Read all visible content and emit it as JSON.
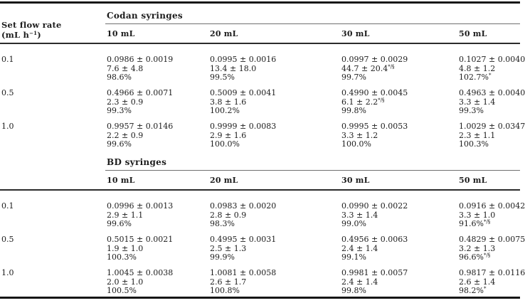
{
  "page": {
    "background": "#ffffff",
    "ink": "#1c1c1c"
  },
  "stub": {
    "line1": "Set flow rate",
    "unit_open": "(mL h",
    "unit_sup": "−1",
    "unit_close": ")"
  },
  "sections": [
    {
      "title": "Codan syringes",
      "columns": [
        "10 mL",
        "20 mL",
        "30 mL",
        "50 mL"
      ],
      "rows": [
        {
          "flow_rate": "0.1",
          "cells": [
            {
              "lines": [
                {
                  "t": "0.0986 ± 0.0019"
                },
                {
                  "t": "7.6 ± 4.8"
                },
                {
                  "t": "98.6%"
                }
              ]
            },
            {
              "lines": [
                {
                  "t": "0.0995 ± 0.0016"
                },
                {
                  "t": "13.4 ± 18.0"
                },
                {
                  "t": "99.5%"
                }
              ]
            },
            {
              "lines": [
                {
                  "t": "0.0997 ± 0.0029"
                },
                {
                  "t": "44.7 ± 20.4",
                  "sup": "*/§"
                },
                {
                  "t": "99.7%"
                }
              ]
            },
            {
              "lines": [
                {
                  "t": "0.1027 ± 0.0040"
                },
                {
                  "t": "4.8 ± 1.2"
                },
                {
                  "t": "102.7%",
                  "sup": "*"
                }
              ]
            }
          ]
        },
        {
          "flow_rate": "0.5",
          "cells": [
            {
              "lines": [
                {
                  "t": "0.4966 ± 0.0071"
                },
                {
                  "t": "2.3 ± 0.9"
                },
                {
                  "t": "99.3%"
                }
              ]
            },
            {
              "lines": [
                {
                  "t": "0.5009 ± 0.0041"
                },
                {
                  "t": "3.8 ± 1.6"
                },
                {
                  "t": "100.2%"
                }
              ]
            },
            {
              "lines": [
                {
                  "t": "0.4990 ± 0.0045"
                },
                {
                  "t": "6.1 ± 2.2",
                  "sup": "*/§"
                },
                {
                  "t": "99.8%"
                }
              ]
            },
            {
              "lines": [
                {
                  "t": "0.4963 ± 0.0040"
                },
                {
                  "t": "3.3 ± 1.4"
                },
                {
                  "t": "99.3%"
                }
              ]
            }
          ]
        },
        {
          "flow_rate": "1.0",
          "cells": [
            {
              "lines": [
                {
                  "t": "0.9957 ± 0.0146"
                },
                {
                  "t": "2.2 ± 0.9"
                },
                {
                  "t": "99.6%"
                }
              ]
            },
            {
              "lines": [
                {
                  "t": "0.9999 ± 0.0083"
                },
                {
                  "t": "2.9 ± 1.6"
                },
                {
                  "t": "100.0%"
                }
              ]
            },
            {
              "lines": [
                {
                  "t": "0.9995 ± 0.0053"
                },
                {
                  "t": "3.3 ± 1.2"
                },
                {
                  "t": "100.0%"
                }
              ]
            },
            {
              "lines": [
                {
                  "t": "1.0029 ± 0.0347"
                },
                {
                  "t": "2.3 ± 1.1"
                },
                {
                  "t": "100.3%"
                }
              ]
            }
          ]
        }
      ]
    },
    {
      "title": "BD syringes",
      "columns": [
        "10 mL",
        "20 mL",
        "30 mL",
        "50 mL"
      ],
      "rows": [
        {
          "flow_rate": "0.1",
          "cells": [
            {
              "lines": [
                {
                  "t": "0.0996 ± 0.0013"
                },
                {
                  "t": "2.9 ± 1.1"
                },
                {
                  "t": "99.6%"
                }
              ]
            },
            {
              "lines": [
                {
                  "t": "0.0983 ± 0.0020"
                },
                {
                  "t": "2.8 ± 0.9"
                },
                {
                  "t": "98.3%"
                }
              ]
            },
            {
              "lines": [
                {
                  "t": "0.0990 ± 0.0022"
                },
                {
                  "t": "3.3 ± 1.4"
                },
                {
                  "t": "99.0%"
                }
              ]
            },
            {
              "lines": [
                {
                  "t": "0.0916 ± 0.0042"
                },
                {
                  "t": "3.3 ± 1.0"
                },
                {
                  "t": "91.6%",
                  "sup": "*/§"
                }
              ]
            }
          ]
        },
        {
          "flow_rate": "0.5",
          "cells": [
            {
              "lines": [
                {
                  "t": "0.5015 ± 0.0021"
                },
                {
                  "t": "1.9 ± 1.0"
                },
                {
                  "t": "100.3%"
                }
              ]
            },
            {
              "lines": [
                {
                  "t": "0.4995 ± 0.0031"
                },
                {
                  "t": "2.5 ± 1.3"
                },
                {
                  "t": "99.9%"
                }
              ]
            },
            {
              "lines": [
                {
                  "t": "0.4956 ± 0.0063"
                },
                {
                  "t": "2.4 ± 1.4"
                },
                {
                  "t": "99.1%"
                }
              ]
            },
            {
              "lines": [
                {
                  "t": "0.4829 ± 0.0075"
                },
                {
                  "t": "3.2 ± 1.3"
                },
                {
                  "t": "96.6%",
                  "sup": "*/§"
                }
              ]
            }
          ]
        },
        {
          "flow_rate": "1.0",
          "cells": [
            {
              "lines": [
                {
                  "t": "1.0045 ± 0.0038"
                },
                {
                  "t": "2.0 ± 1.0"
                },
                {
                  "t": "100.5%"
                }
              ]
            },
            {
              "lines": [
                {
                  "t": "1.0081 ± 0.0058"
                },
                {
                  "t": "2.6 ± 1.7"
                },
                {
                  "t": "100.8%"
                }
              ]
            },
            {
              "lines": [
                {
                  "t": "0.9981 ± 0.0057"
                },
                {
                  "t": "2.4 ± 1.4"
                },
                {
                  "t": "99.8%"
                }
              ]
            },
            {
              "lines": [
                {
                  "t": "0.9817 ± 0.0116"
                },
                {
                  "t": "2.6 ± 1.4"
                },
                {
                  "t": "98.2%",
                  "sup": "*"
                }
              ]
            }
          ]
        }
      ]
    }
  ]
}
